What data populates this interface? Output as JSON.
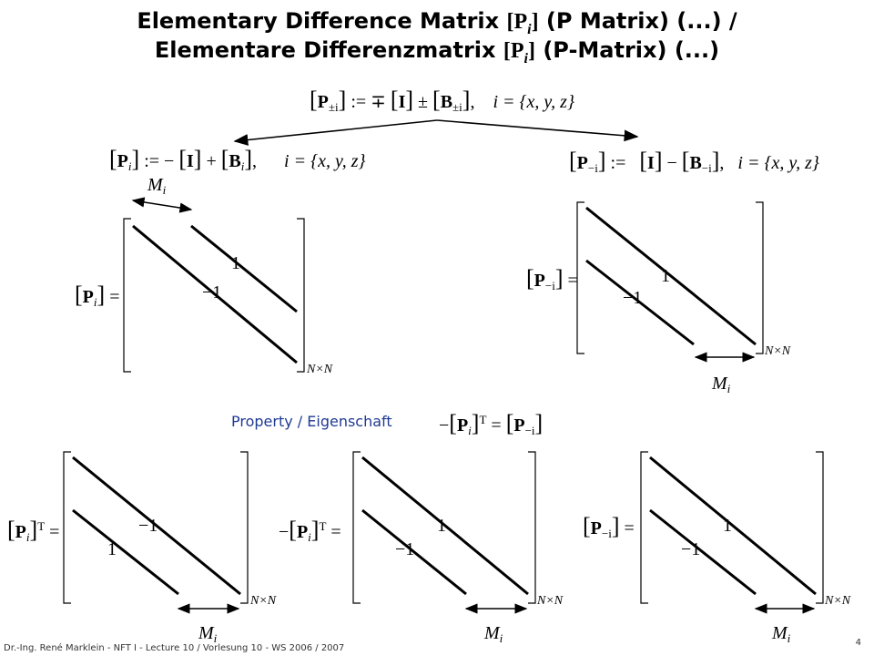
{
  "title": {
    "line1_a": "Elementary Difference Matrix ",
    "line1_sym": "[P",
    "line1_sub": "i",
    "line1_close": "]",
    "line1_b": " (P Matrix) (...) /",
    "line2_a": "Elementare Differenzmatrix ",
    "line2_sym": "[P",
    "line2_sub": "i",
    "line2_close": "]",
    "line2_b": " (P-Matrix) (...)"
  },
  "equations": {
    "general": {
      "lhs_sub": "±i",
      "op": ":= ∓",
      "rhs_sub": "±i",
      "set": "i = {x, y, z}"
    },
    "forward": {
      "lhs_sub": "i",
      "op": ":= −",
      "rhs_sub": "i",
      "set": "i = {x, y, z}"
    },
    "backward": {
      "lhs_sub": "−i",
      "op": ":=",
      "rhs_sub": "−i",
      "set": "i = {x, y, z}"
    },
    "property": {
      "label": "Property / Eigenschaft",
      "lhs_sub": "i",
      "sup": "T",
      "rhs_sub": "−i"
    }
  },
  "matrices": {
    "top_left": {
      "lhs_sub": "i",
      "upper_label": "1",
      "lower_label": "−1",
      "size": "N×N",
      "offset": "M",
      "offset_sub": "i"
    },
    "top_right": {
      "lhs_sub": "−i",
      "upper_label": "1",
      "lower_label": "−1",
      "size": "N×N",
      "offset": "M",
      "offset_sub": "i"
    },
    "bottom_left": {
      "lhs_sub": "i",
      "sup": "T",
      "upper_label": "−1",
      "lower_label": "1",
      "size": "N×N",
      "offset": "M",
      "offset_sub": "i"
    },
    "bottom_middle": {
      "lhs_sub": "i",
      "sup": "T",
      "upper_label": "1",
      "lower_label": "−1",
      "size": "N×N",
      "offset": "M",
      "offset_sub": "i"
    },
    "bottom_right": {
      "lhs_sub": "−i",
      "upper_label": "1",
      "lower_label": "−1",
      "size": "N×N",
      "offset": "M",
      "offset_sub": "i"
    }
  },
  "footer": {
    "text": "Dr.-Ing. René Marklein - NFT I - Lecture 10 / Vorlesung 10 - WS 2006 / 2007",
    "page": "4"
  },
  "colors": {
    "property_label": "#1f3a93",
    "ink": "#000000"
  }
}
